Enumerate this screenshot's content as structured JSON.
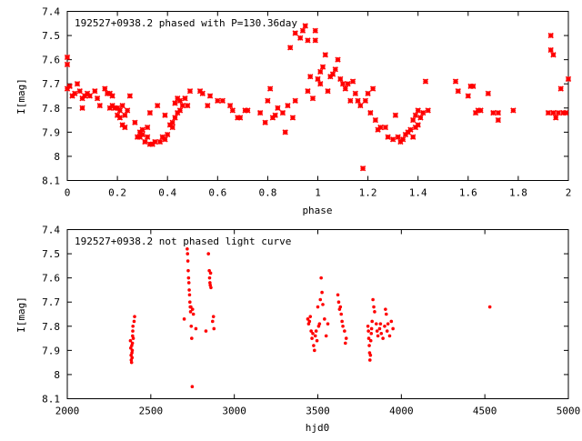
{
  "chart_data": [
    {
      "type": "scatter",
      "title": "192527+0938.2 phased with P=130.36day",
      "xlabel": "phase",
      "ylabel": "I[mag]",
      "xlim": [
        0,
        2
      ],
      "ylim": [
        7.4,
        8.1
      ],
      "y_inverted": true,
      "x_ticks": [
        "0",
        "0.2",
        "0.4",
        "0.6",
        "0.8",
        "1",
        "1.2",
        "1.4",
        "1.6",
        "1.8",
        "2"
      ],
      "y_ticks": [
        "7.4",
        "7.5",
        "7.6",
        "7.7",
        "7.8",
        "7.9",
        "8",
        "8.1"
      ],
      "marker": "star",
      "color": "#ff0000",
      "points": [
        [
          0.0,
          7.59
        ],
        [
          0.0,
          7.62
        ],
        [
          0.0,
          7.72
        ],
        [
          0.01,
          7.71
        ],
        [
          0.02,
          7.75
        ],
        [
          0.03,
          7.74
        ],
        [
          0.04,
          7.7
        ],
        [
          0.05,
          7.73
        ],
        [
          0.06,
          7.76
        ],
        [
          0.06,
          7.8
        ],
        [
          0.07,
          7.75
        ],
        [
          0.08,
          7.74
        ],
        [
          0.09,
          7.75
        ],
        [
          0.11,
          7.73
        ],
        [
          0.12,
          7.76
        ],
        [
          0.13,
          7.79
        ],
        [
          0.15,
          7.72
        ],
        [
          0.16,
          7.74
        ],
        [
          0.17,
          7.74
        ],
        [
          0.17,
          7.8
        ],
        [
          0.18,
          7.75
        ],
        [
          0.18,
          7.79
        ],
        [
          0.19,
          7.8
        ],
        [
          0.2,
          7.8
        ],
        [
          0.2,
          7.83
        ],
        [
          0.21,
          7.81
        ],
        [
          0.21,
          7.84
        ],
        [
          0.22,
          7.87
        ],
        [
          0.22,
          7.79
        ],
        [
          0.23,
          7.83
        ],
        [
          0.23,
          7.88
        ],
        [
          0.24,
          7.81
        ],
        [
          0.25,
          7.75
        ],
        [
          0.27,
          7.86
        ],
        [
          0.28,
          7.92
        ],
        [
          0.29,
          7.92
        ],
        [
          0.29,
          7.9
        ],
        [
          0.3,
          7.91
        ],
        [
          0.3,
          7.89
        ],
        [
          0.31,
          7.94
        ],
        [
          0.32,
          7.92
        ],
        [
          0.32,
          7.88
        ],
        [
          0.33,
          7.82
        ],
        [
          0.33,
          7.95
        ],
        [
          0.34,
          7.95
        ],
        [
          0.35,
          7.94
        ],
        [
          0.36,
          7.79
        ],
        [
          0.37,
          7.94
        ],
        [
          0.38,
          7.92
        ],
        [
          0.39,
          7.93
        ],
        [
          0.39,
          7.83
        ],
        [
          0.4,
          7.91
        ],
        [
          0.41,
          7.87
        ],
        [
          0.42,
          7.88
        ],
        [
          0.42,
          7.86
        ],
        [
          0.43,
          7.84
        ],
        [
          0.43,
          7.78
        ],
        [
          0.44,
          7.82
        ],
        [
          0.44,
          7.76
        ],
        [
          0.45,
          7.81
        ],
        [
          0.45,
          7.77
        ],
        [
          0.46,
          7.79
        ],
        [
          0.47,
          7.76
        ],
        [
          0.48,
          7.79
        ],
        [
          0.49,
          7.73
        ],
        [
          0.53,
          7.73
        ],
        [
          0.54,
          7.74
        ],
        [
          0.56,
          7.79
        ],
        [
          0.57,
          7.75
        ],
        [
          0.6,
          7.77
        ],
        [
          0.62,
          7.77
        ],
        [
          0.65,
          7.79
        ],
        [
          0.66,
          7.81
        ],
        [
          0.68,
          7.84
        ],
        [
          0.69,
          7.84
        ],
        [
          0.71,
          7.81
        ],
        [
          0.72,
          7.81
        ],
        [
          0.77,
          7.82
        ],
        [
          0.79,
          7.86
        ],
        [
          0.8,
          7.77
        ],
        [
          0.81,
          7.72
        ],
        [
          0.82,
          7.84
        ],
        [
          0.83,
          7.83
        ],
        [
          0.84,
          7.8
        ],
        [
          0.86,
          7.82
        ],
        [
          0.87,
          7.9
        ],
        [
          0.88,
          7.79
        ],
        [
          0.89,
          7.55
        ],
        [
          0.9,
          7.84
        ],
        [
          0.91,
          7.77
        ],
        [
          0.91,
          7.49
        ],
        [
          0.93,
          7.51
        ],
        [
          0.94,
          7.48
        ],
        [
          0.95,
          7.46
        ],
        [
          0.96,
          7.52
        ],
        [
          0.96,
          7.73
        ],
        [
          0.97,
          7.67
        ],
        [
          0.98,
          7.76
        ],
        [
          0.99,
          7.52
        ],
        [
          0.99,
          7.48
        ],
        [
          1.0,
          7.68
        ],
        [
          1.01,
          7.65
        ],
        [
          1.01,
          7.7
        ],
        [
          1.02,
          7.63
        ],
        [
          1.03,
          7.58
        ],
        [
          1.04,
          7.73
        ],
        [
          1.05,
          7.67
        ],
        [
          1.06,
          7.66
        ],
        [
          1.07,
          7.64
        ],
        [
          1.08,
          7.6
        ],
        [
          1.09,
          7.68
        ],
        [
          1.1,
          7.7
        ],
        [
          1.11,
          7.72
        ],
        [
          1.12,
          7.7
        ],
        [
          1.13,
          7.77
        ],
        [
          1.14,
          7.69
        ],
        [
          1.15,
          7.74
        ],
        [
          1.16,
          7.77
        ],
        [
          1.17,
          7.79
        ],
        [
          1.18,
          8.05
        ],
        [
          1.19,
          7.77
        ],
        [
          1.2,
          7.74
        ],
        [
          1.21,
          7.82
        ],
        [
          1.22,
          7.72
        ],
        [
          1.23,
          7.85
        ],
        [
          1.24,
          7.89
        ],
        [
          1.25,
          7.88
        ],
        [
          1.27,
          7.88
        ],
        [
          1.28,
          7.92
        ],
        [
          1.3,
          7.93
        ],
        [
          1.31,
          7.83
        ],
        [
          1.32,
          7.92
        ],
        [
          1.33,
          7.94
        ],
        [
          1.34,
          7.93
        ],
        [
          1.35,
          7.91
        ],
        [
          1.36,
          7.9
        ],
        [
          1.37,
          7.89
        ],
        [
          1.38,
          7.92
        ],
        [
          1.38,
          7.85
        ],
        [
          1.39,
          7.83
        ],
        [
          1.39,
          7.88
        ],
        [
          1.4,
          7.81
        ],
        [
          1.4,
          7.87
        ],
        [
          1.41,
          7.84
        ],
        [
          1.42,
          7.82
        ],
        [
          1.43,
          7.69
        ],
        [
          1.44,
          7.81
        ],
        [
          1.55,
          7.69
        ],
        [
          1.56,
          7.73
        ],
        [
          1.6,
          7.75
        ],
        [
          1.61,
          7.71
        ],
        [
          1.62,
          7.71
        ],
        [
          1.63,
          7.82
        ],
        [
          1.64,
          7.81
        ],
        [
          1.65,
          7.81
        ],
        [
          1.68,
          7.74
        ],
        [
          1.7,
          7.82
        ],
        [
          1.72,
          7.82
        ],
        [
          1.72,
          7.85
        ],
        [
          1.78,
          7.81
        ],
        [
          1.92,
          7.82
        ],
        [
          1.93,
          7.5
        ],
        [
          1.93,
          7.56
        ],
        [
          1.94,
          7.58
        ],
        [
          1.94,
          7.82
        ],
        [
          1.95,
          7.84
        ],
        [
          1.96,
          7.82
        ],
        [
          1.97,
          7.72
        ],
        [
          1.98,
          7.82
        ],
        [
          1.99,
          7.82
        ],
        [
          2.0,
          7.68
        ]
      ]
    },
    {
      "type": "scatter",
      "title": "192527+0938.2 not phased light curve",
      "xlabel": "hjd0",
      "ylabel": "I[mag]",
      "xlim": [
        2000,
        5000
      ],
      "ylim": [
        7.4,
        8.1
      ],
      "y_inverted": true,
      "x_ticks": [
        "2000",
        "2500",
        "3000",
        "3500",
        "4000",
        "4500",
        "5000"
      ],
      "y_ticks": [
        "7.4",
        "7.5",
        "7.6",
        "7.7",
        "7.8",
        "7.9",
        "8",
        "8.1"
      ],
      "marker": "dot",
      "color": "#ff0000",
      "points": [
        [
          2378,
          7.86
        ],
        [
          2380,
          7.89
        ],
        [
          2382,
          7.92
        ],
        [
          2383,
          7.94
        ],
        [
          2385,
          7.95
        ],
        [
          2386,
          7.88
        ],
        [
          2387,
          7.91
        ],
        [
          2388,
          7.93
        ],
        [
          2389,
          7.9
        ],
        [
          2390,
          7.87
        ],
        [
          2391,
          7.84
        ],
        [
          2392,
          7.82
        ],
        [
          2393,
          7.8
        ],
        [
          2395,
          7.85
        ],
        [
          2400,
          7.78
        ],
        [
          2403,
          7.76
        ],
        [
          2700,
          7.77
        ],
        [
          2718,
          7.48
        ],
        [
          2720,
          7.5
        ],
        [
          2722,
          7.53
        ],
        [
          2724,
          7.57
        ],
        [
          2726,
          7.6
        ],
        [
          2728,
          7.62
        ],
        [
          2730,
          7.65
        ],
        [
          2732,
          7.67
        ],
        [
          2734,
          7.7
        ],
        [
          2736,
          7.72
        ],
        [
          2738,
          7.74
        ],
        [
          2740,
          7.72
        ],
        [
          2742,
          7.8
        ],
        [
          2745,
          7.85
        ],
        [
          2748,
          8.05
        ],
        [
          2750,
          7.73
        ],
        [
          2755,
          7.75
        ],
        [
          2770,
          7.81
        ],
        [
          2830,
          7.82
        ],
        [
          2845,
          7.5
        ],
        [
          2850,
          7.57
        ],
        [
          2852,
          7.6
        ],
        [
          2854,
          7.62
        ],
        [
          2856,
          7.63
        ],
        [
          2858,
          7.58
        ],
        [
          2860,
          7.64
        ],
        [
          2870,
          7.78
        ],
        [
          2875,
          7.76
        ],
        [
          2878,
          7.81
        ],
        [
          3440,
          7.77
        ],
        [
          3445,
          7.79
        ],
        [
          3450,
          7.78
        ],
        [
          3455,
          7.76
        ],
        [
          3460,
          7.82
        ],
        [
          3465,
          7.85
        ],
        [
          3470,
          7.83
        ],
        [
          3475,
          7.88
        ],
        [
          3480,
          7.9
        ],
        [
          3485,
          7.84
        ],
        [
          3490,
          7.82
        ],
        [
          3495,
          7.86
        ],
        [
          3500,
          7.72
        ],
        [
          3505,
          7.8
        ],
        [
          3510,
          7.79
        ],
        [
          3515,
          7.69
        ],
        [
          3520,
          7.6
        ],
        [
          3525,
          7.66
        ],
        [
          3530,
          7.71
        ],
        [
          3540,
          7.77
        ],
        [
          3550,
          7.84
        ],
        [
          3560,
          7.79
        ],
        [
          3620,
          7.67
        ],
        [
          3625,
          7.7
        ],
        [
          3630,
          7.73
        ],
        [
          3635,
          7.72
        ],
        [
          3640,
          7.75
        ],
        [
          3645,
          7.78
        ],
        [
          3650,
          7.8
        ],
        [
          3660,
          7.82
        ],
        [
          3665,
          7.87
        ],
        [
          3670,
          7.85
        ],
        [
          3800,
          7.8
        ],
        [
          3803,
          7.82
        ],
        [
          3805,
          7.85
        ],
        [
          3808,
          7.88
        ],
        [
          3810,
          7.91
        ],
        [
          3812,
          7.94
        ],
        [
          3815,
          7.92
        ],
        [
          3817,
          7.86
        ],
        [
          3820,
          7.83
        ],
        [
          3822,
          7.81
        ],
        [
          3825,
          7.78
        ],
        [
          3830,
          7.69
        ],
        [
          3835,
          7.72
        ],
        [
          3840,
          7.74
        ],
        [
          3850,
          7.79
        ],
        [
          3855,
          7.82
        ],
        [
          3860,
          7.84
        ],
        [
          3870,
          7.81
        ],
        [
          3875,
          7.79
        ],
        [
          3880,
          7.83
        ],
        [
          3890,
          7.85
        ],
        [
          3900,
          7.8
        ],
        [
          3905,
          7.73
        ],
        [
          3910,
          7.75
        ],
        [
          3915,
          7.82
        ],
        [
          3920,
          7.79
        ],
        [
          3930,
          7.84
        ],
        [
          3940,
          7.78
        ],
        [
          3950,
          7.81
        ],
        [
          4530,
          7.72
        ]
      ]
    }
  ]
}
